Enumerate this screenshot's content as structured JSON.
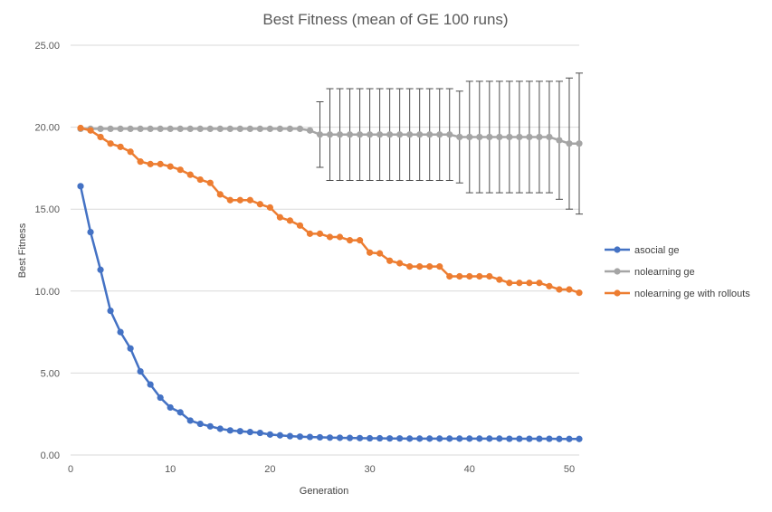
{
  "chart_data": {
    "type": "line",
    "title": "Best Fitness (mean of GE 100 runs)",
    "xlabel": "Generation",
    "ylabel": "Best Fitness",
    "xlim": [
      0,
      51
    ],
    "ylim": [
      0,
      25
    ],
    "x_ticks": [
      0,
      10,
      20,
      30,
      40,
      50
    ],
    "y_ticks": [
      "0.00",
      "5.00",
      "10.00",
      "15.00",
      "20.00",
      "25.00"
    ],
    "y_tick_values": [
      0,
      5,
      10,
      15,
      20,
      25
    ],
    "grid": "horizontal",
    "legend_position": "right",
    "x": [
      1,
      2,
      3,
      4,
      5,
      6,
      7,
      8,
      9,
      10,
      11,
      12,
      13,
      14,
      15,
      16,
      17,
      18,
      19,
      20,
      21,
      22,
      23,
      24,
      25,
      26,
      27,
      28,
      29,
      30,
      31,
      32,
      33,
      34,
      35,
      36,
      37,
      38,
      39,
      40,
      41,
      42,
      43,
      44,
      45,
      46,
      47,
      48,
      49,
      50,
      51
    ],
    "series": [
      {
        "name": "asocial ge",
        "color": "#4472c4",
        "values": [
          16.4,
          13.6,
          11.3,
          8.8,
          7.5,
          6.5,
          5.1,
          4.3,
          3.5,
          2.9,
          2.6,
          2.1,
          1.9,
          1.75,
          1.6,
          1.5,
          1.45,
          1.4,
          1.35,
          1.25,
          1.2,
          1.15,
          1.12,
          1.1,
          1.08,
          1.06,
          1.05,
          1.04,
          1.03,
          1.02,
          1.02,
          1.01,
          1.01,
          1.0,
          1.0,
          1.0,
          1.0,
          1.0,
          1.0,
          1.0,
          1.0,
          1.0,
          1.0,
          0.99,
          0.99,
          0.99,
          0.99,
          0.99,
          0.98,
          0.98,
          0.98
        ]
      },
      {
        "name": "nolearning ge",
        "color": "#a5a5a5",
        "values": [
          19.9,
          19.9,
          19.9,
          19.9,
          19.9,
          19.9,
          19.9,
          19.9,
          19.9,
          19.9,
          19.9,
          19.9,
          19.9,
          19.9,
          19.9,
          19.9,
          19.9,
          19.9,
          19.9,
          19.9,
          19.9,
          19.9,
          19.9,
          19.8,
          19.55,
          19.55,
          19.55,
          19.55,
          19.55,
          19.55,
          19.55,
          19.55,
          19.55,
          19.55,
          19.55,
          19.55,
          19.55,
          19.55,
          19.4,
          19.4,
          19.4,
          19.4,
          19.4,
          19.4,
          19.4,
          19.4,
          19.4,
          19.4,
          19.2,
          19.0,
          19.0
        ],
        "error": [
          0,
          0,
          0,
          0,
          0,
          0,
          0,
          0,
          0,
          0,
          0,
          0,
          0,
          0,
          0,
          0,
          0,
          0,
          0,
          0,
          0,
          0,
          0,
          0,
          2.0,
          2.8,
          2.8,
          2.8,
          2.8,
          2.8,
          2.8,
          2.8,
          2.8,
          2.8,
          2.8,
          2.8,
          2.8,
          2.8,
          2.8,
          3.4,
          3.4,
          3.4,
          3.4,
          3.4,
          3.4,
          3.4,
          3.4,
          3.4,
          3.6,
          4.0,
          4.3
        ]
      },
      {
        "name": "nolearning ge with rollouts",
        "color": "#ed7d31",
        "values": [
          19.95,
          19.8,
          19.4,
          19.0,
          18.8,
          18.5,
          17.9,
          17.75,
          17.75,
          17.6,
          17.4,
          17.1,
          16.8,
          16.6,
          15.9,
          15.55,
          15.55,
          15.55,
          15.3,
          15.1,
          14.5,
          14.3,
          14.0,
          13.5,
          13.5,
          13.3,
          13.3,
          13.1,
          13.1,
          12.35,
          12.3,
          11.85,
          11.7,
          11.5,
          11.5,
          11.5,
          11.5,
          10.9,
          10.9,
          10.9,
          10.9,
          10.9,
          10.7,
          10.5,
          10.5,
          10.5,
          10.5,
          10.3,
          10.1,
          10.1,
          9.9
        ]
      }
    ]
  }
}
